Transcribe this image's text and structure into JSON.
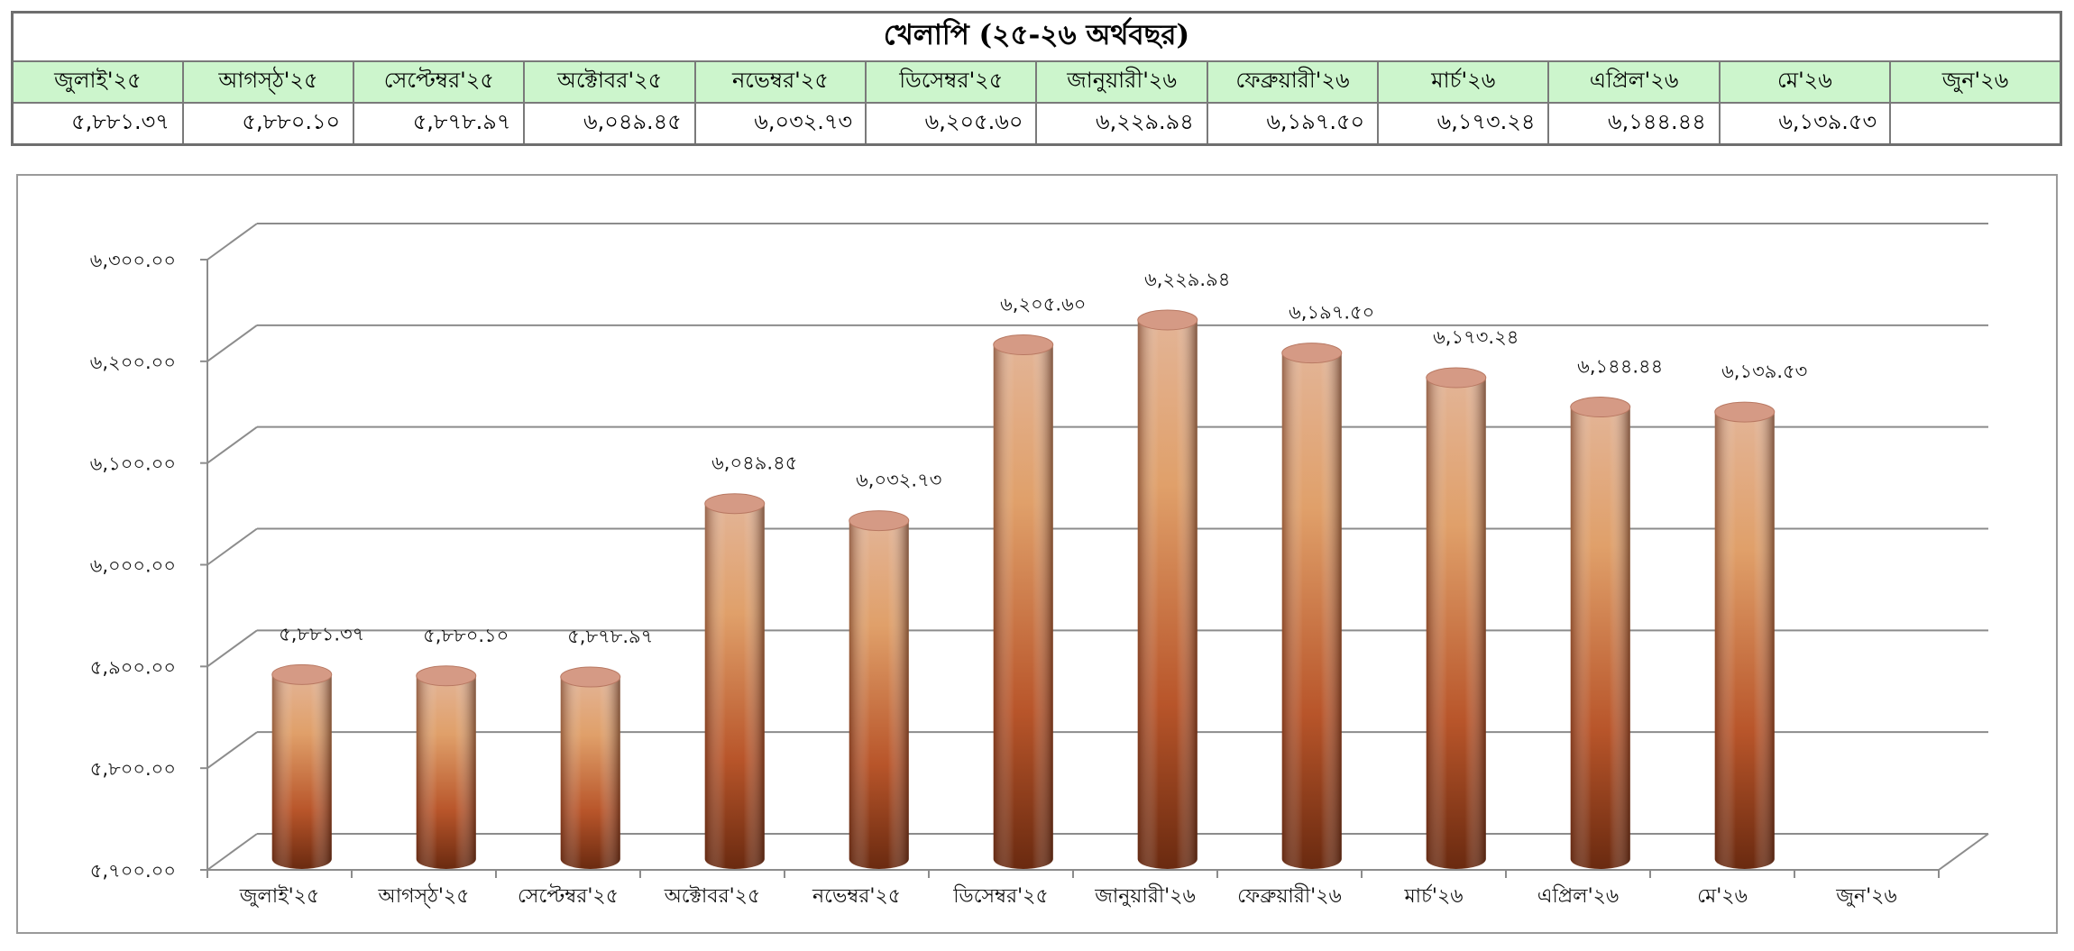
{
  "table": {
    "title": "খেলাপি  (২৫-২৬ অর্থবছর)",
    "months": [
      "জুলাই'২৫",
      "আগস্ঠ'২৫",
      "সেপ্টেম্বর'২৫",
      "অক্টোবর'২৫",
      "নভেম্বর'২৫",
      "ডিসেম্বর'২৫",
      "জানুয়ারী'২৬",
      "ফেব্রুয়ারী'২৬",
      "মার্চ'২৬",
      "এপ্রিল'২৬",
      "মে'২৬",
      "জুন'২৬"
    ],
    "values": [
      "৫,৮৮১.৩৭",
      "৫,৮৮০.১০",
      "৫,৮৭৮.৯৭",
      "৬,০৪৯.৪৫",
      "৬,০৩২.৭৩",
      "৬,২০৫.৬০",
      "৬,২২৯.৯৪",
      "৬,১৯৭.৫০",
      "৬,১৭৩.২৪",
      "৬,১৪৪.৪৪",
      "৬,১৩৯.৫৩",
      ""
    ]
  },
  "chart_data": {
    "type": "bar",
    "style": "3d-cylinder",
    "categories": [
      "জুলাই'২৫",
      "আগস্ঠ'২৫",
      "সেপ্টেম্বর'২৫",
      "অক্টোবর'২৫",
      "নভেম্বর'২৫",
      "ডিসেম্বর'২৫",
      "জানুয়ারী'২৬",
      "ফেব্রুয়ারী'২৬",
      "মার্চ'২৬",
      "এপ্রিল'২৬",
      "মে'২৬",
      "জুন'২৬"
    ],
    "values": [
      5881.37,
      5880.1,
      5878.97,
      6049.45,
      6032.73,
      6205.6,
      6229.94,
      6197.5,
      6173.24,
      6144.44,
      6139.53,
      null
    ],
    "data_labels": [
      "৫,৮৮১.৩৭",
      "৫,৮৮০.১০",
      "৫,৮৭৮.৯৭",
      "৬,০৪৯.৪৫",
      "৬,০৩২.৭৩",
      "৬,২০৫.৬০",
      "৬,২২৯.৯৪",
      "৬,১৯৭.৫০",
      "৬,১৭৩.২৪",
      "৬,১৪৪.৪৪",
      "৬,১৩৯.৫৩",
      ""
    ],
    "ylim": [
      5700,
      6300
    ],
    "yticks": [
      5700,
      5800,
      5900,
      6000,
      6100,
      6200,
      6300
    ],
    "ytick_labels": [
      "৫,৭০০.০০",
      "৫,৮০০.০০",
      "৫,৯০০.০০",
      "৬,০০০.০০",
      "৬,১০০.০০",
      "৬,২০০.০০",
      "৬,৩০০.০০"
    ],
    "grid": true,
    "title": "",
    "xlabel": "",
    "ylabel": "",
    "colors": {
      "bar_light": "#e8b48a",
      "bar_mid": "#c0622a",
      "bar_dark": "#6e2d10",
      "top": "#d59a85",
      "grid": "#8c8c8c"
    }
  }
}
